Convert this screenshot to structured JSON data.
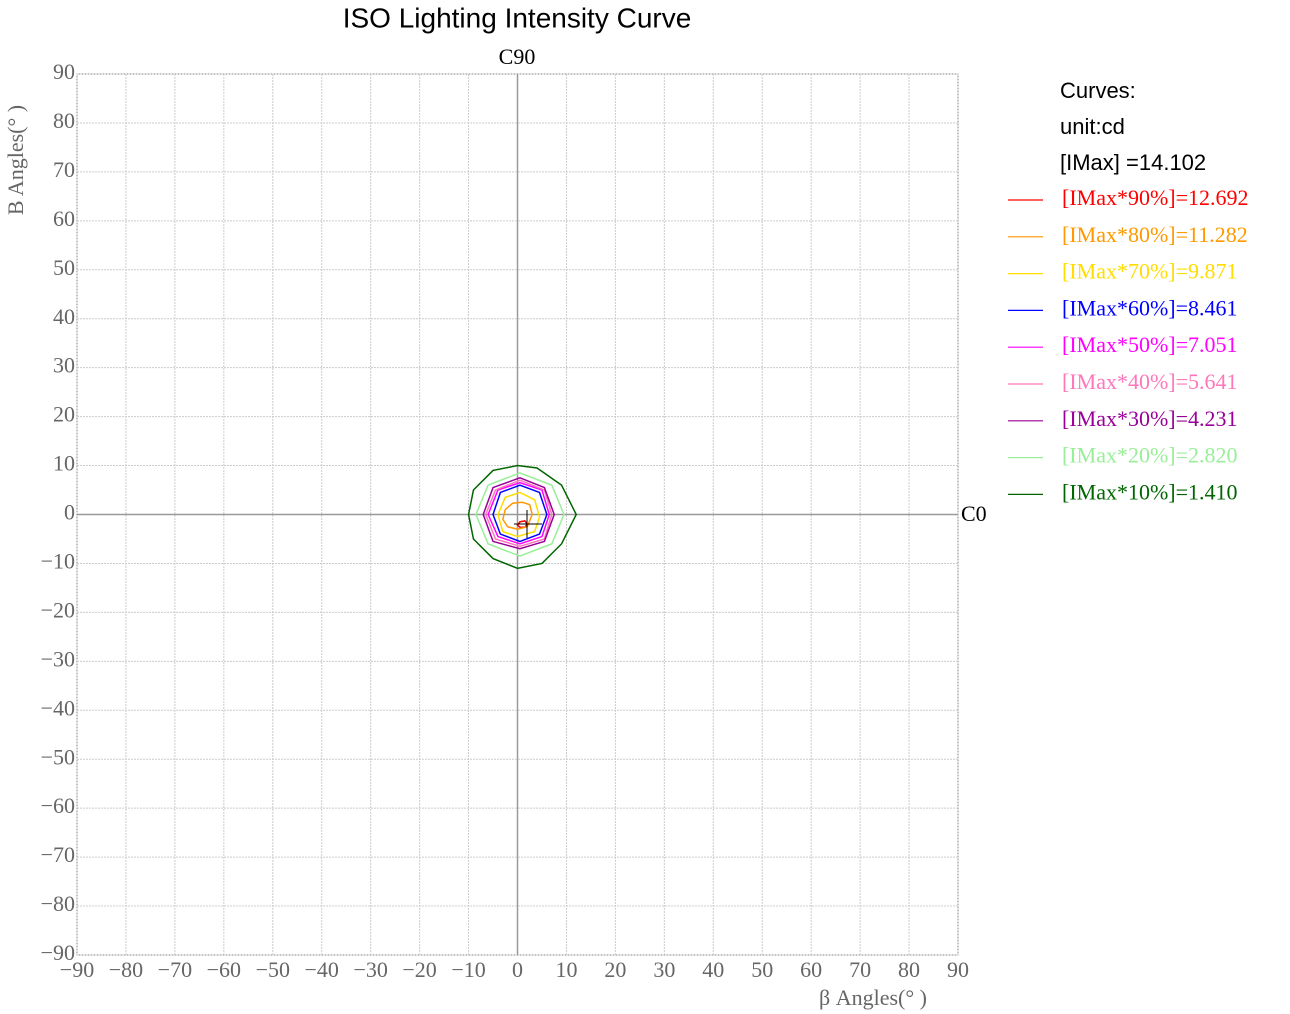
{
  "chart_data": {
    "type": "contour",
    "title": "ISO Lighting Intensity Curve",
    "top_label": "C90",
    "right_label": "C0",
    "xlabel": "β Angles(° )",
    "ylabel": "B Angles(° )",
    "legend_header": [
      "Curves:",
      "unit:cd",
      "[IMax]    =14.102"
    ],
    "xlim": [
      -90,
      90
    ],
    "ylim": [
      -90,
      90
    ],
    "xticks": [
      {
        "value": -90,
        "label": "−90"
      },
      {
        "value": -80,
        "label": "−80"
      },
      {
        "value": -70,
        "label": "−70"
      },
      {
        "value": -60,
        "label": "−60"
      },
      {
        "value": -50,
        "label": "−50"
      },
      {
        "value": -40,
        "label": "−40"
      },
      {
        "value": -30,
        "label": "−30"
      },
      {
        "value": -20,
        "label": "−20"
      },
      {
        "value": -10,
        "label": "−10"
      },
      0,
      10,
      20,
      30,
      40,
      50,
      60,
      70,
      80,
      90
    ],
    "yticks": [
      {
        "value": -90,
        "label": "−90"
      },
      {
        "value": -80,
        "label": "−80"
      },
      {
        "value": -70,
        "label": "−70"
      },
      {
        "value": -60,
        "label": "−60"
      },
      {
        "value": -50,
        "label": "−50"
      },
      {
        "value": -40,
        "label": "−40"
      },
      {
        "value": -30,
        "label": "−30"
      },
      {
        "value": -20,
        "label": "−20"
      },
      {
        "value": -10,
        "label": "−10"
      },
      0,
      10,
      20,
      30,
      40,
      50,
      60,
      70,
      80,
      90
    ],
    "grid": true,
    "series": [
      {
        "name": "[IMax*90%]=12.692",
        "color": "#ff0000",
        "x": [
          2,
          1.5,
          0.5,
          0,
          0.5,
          1.5
        ],
        "y": [
          -2,
          -1.3,
          -1.5,
          -2.2,
          -2.6,
          -2.6
        ]
      },
      {
        "name": "[IMax*80%]=11.282",
        "color": "#ff9900",
        "x": [
          3,
          2.5,
          1,
          -1,
          -2.5,
          -3,
          -2,
          0,
          2
        ],
        "y": [
          0,
          2,
          2.5,
          2.3,
          1,
          -1,
          -2.5,
          -3,
          -2.5
        ]
      },
      {
        "name": "[IMax*70%]=9.871",
        "color": "#ffdd00",
        "x": [
          4.5,
          3.5,
          0.5,
          -2.5,
          -4,
          -3,
          0,
          3.5
        ],
        "y": [
          -0.5,
          3,
          4.5,
          3.5,
          0,
          -3.5,
          -4.5,
          -3.5
        ]
      },
      {
        "name": "[IMax*60%]=8.461",
        "color": "#0000ff",
        "x": [
          6,
          4.5,
          0.5,
          -3.5,
          -5,
          -3.5,
          0.5,
          4.5
        ],
        "y": [
          0,
          4.5,
          6,
          4.5,
          0,
          -4,
          -5.5,
          -4
        ]
      },
      {
        "name": "[IMax*50%]=7.051",
        "color": "#ff00ff",
        "x": [
          6.5,
          5,
          0.5,
          -4,
          -6,
          -4,
          0.5,
          5
        ],
        "y": [
          0,
          5,
          6.5,
          5,
          0,
          -4.5,
          -6,
          -4.5
        ]
      },
      {
        "name": "[IMax*40%]=5.641",
        "color": "#ff77bb",
        "x": [
          7,
          5.5,
          0.5,
          -4.5,
          -6.5,
          -4.5,
          0.5,
          5.5
        ],
        "y": [
          0,
          5,
          7,
          5,
          0,
          -5,
          -6.5,
          -5
        ]
      },
      {
        "name": "[IMax*30%]=4.231",
        "color": "#990099",
        "x": [
          7.5,
          5.5,
          0.5,
          -5,
          -7,
          -5,
          0.5,
          5.5
        ],
        "y": [
          0,
          5.5,
          7.5,
          5.5,
          0,
          -5.5,
          -7,
          -5.5
        ]
      },
      {
        "name": "[IMax*20%]=2.820",
        "color": "#99ee99",
        "x": [
          9.5,
          7,
          0.5,
          -6,
          -8.5,
          -6,
          0.5,
          7
        ],
        "y": [
          0,
          6,
          8.5,
          6,
          0,
          -6,
          -8.5,
          -6
        ]
      },
      {
        "name": "[IMax*10%]=1.410",
        "color": "#006600",
        "x": [
          12,
          9,
          4,
          0,
          -5,
          -9,
          -10,
          -9,
          -5,
          0,
          5,
          9
        ],
        "y": [
          0,
          6,
          9.5,
          10,
          9,
          5,
          0,
          -5,
          -9,
          -11,
          -10,
          -6
        ]
      }
    ]
  }
}
